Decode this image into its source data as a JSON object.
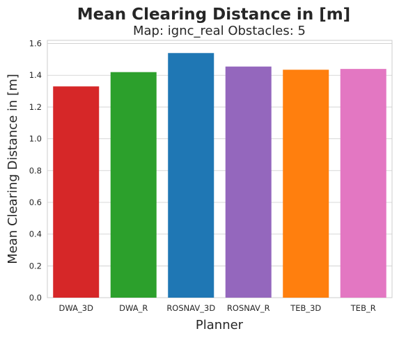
{
  "chart_data": {
    "type": "bar",
    "title": "Mean Clearing Distance in [m]",
    "subtitle": "Map: ignc_real Obstacles: 5",
    "xlabel": "Planner",
    "ylabel": "Mean Clearing Distance in [m]",
    "categories": [
      "DWA_3D",
      "DWA_R",
      "ROSNAV_3D",
      "ROSNAV_R",
      "TEB_3D",
      "TEB_R"
    ],
    "values": [
      1.33,
      1.42,
      1.54,
      1.455,
      1.435,
      1.44
    ],
    "colors": [
      "#d62728",
      "#2ca02c",
      "#1f77b4",
      "#9467bd",
      "#ff7f0e",
      "#e377c2"
    ],
    "ylim": [
      0,
      1.62
    ],
    "yticks": [
      "0.0",
      "0.2",
      "0.4",
      "0.6",
      "0.8",
      "1.0",
      "1.2",
      "1.4",
      "1.6"
    ],
    "grid": true
  }
}
